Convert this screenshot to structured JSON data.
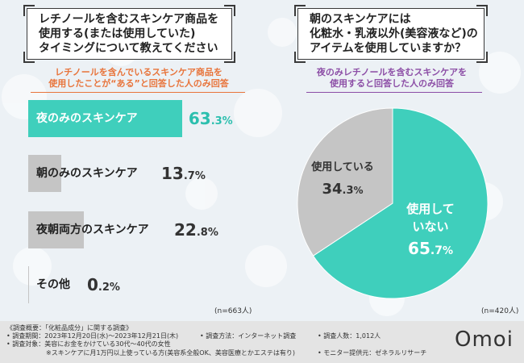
{
  "left_panel": {
    "question_lines": [
      "レチノールを含むスキンケア商品を",
      "使用する(または使用していた)",
      "タイミングについて教えてください"
    ],
    "subtitle_lines": [
      "レチノールを含んでいるスキンケア商品を",
      "使用したことが“ある”と回答した人のみ回答"
    ],
    "n_label": "(n=663人)"
  },
  "right_panel": {
    "question_lines": [
      "朝のスキンケアには",
      "化粧水・乳液以外(美容液など)の",
      "アイテムを使用していますか？"
    ],
    "subtitle_lines": [
      "夜のみレチノールを含むスキンケアを",
      "使用すると回答した人のみ回答"
    ],
    "n_label": "(n=420人)"
  },
  "chart_data": [
    {
      "type": "bar",
      "orientation": "horizontal",
      "title": "レチノールを含むスキンケア商品を使用する(または使用していた)タイミングについて教えてください",
      "subtitle": "レチノールを含んでいるスキンケア商品を使用したことが“ある”と回答した人のみ回答",
      "unit": "%",
      "xlim": [
        0,
        65
      ],
      "categories": [
        "夜のみのスキンケア",
        "朝のみのスキンケア",
        "夜朝両方のスキンケア",
        "その他"
      ],
      "values": [
        63.3,
        13.7,
        22.8,
        0.2
      ],
      "value_labels": [
        {
          "int": "63",
          "dec": ".3",
          "unit": "%"
        },
        {
          "int": "13",
          "dec": ".7",
          "unit": "%"
        },
        {
          "int": "22",
          "dec": ".8",
          "unit": "%"
        },
        {
          "int": "0",
          "dec": ".2",
          "unit": "%"
        }
      ],
      "colors": [
        "#3fcfbc",
        "#c5c5c5",
        "#c5c5c5",
        "#c5c5c5"
      ],
      "highlight_label_color": "#ffffff",
      "highlight_value_color": "#2cbfae",
      "n": "(n=663人)"
    },
    {
      "type": "pie",
      "title": "朝のスキンケアには化粧水・乳液以外(美容液など)のアイテムを使用していますか？",
      "subtitle": "夜のみレチノールを含むスキンケアを使用すると回答した人のみ回答",
      "unit": "%",
      "slices": [
        {
          "label": "使用していない",
          "display_lines": [
            "使用して",
            "いない"
          ],
          "value": 65.7,
          "int": "65",
          "dec": ".7",
          "unit": "%",
          "color": "#3fcfbc"
        },
        {
          "label": "使用している",
          "display_lines": [
            "使用している"
          ],
          "value": 34.3,
          "int": "34",
          "dec": ".3",
          "unit": "%",
          "color": "#c5c5c5"
        }
      ],
      "n": "(n=420人)"
    }
  ],
  "footer": {
    "lines": [
      "《調査概要：「化粧品成分」に関する調査》",
      "• 調査期間：2023年12月20日(水)～2023年12月21日(木)",
      "• 調査方法：インターネット調査",
      "• 調査人数：1,012人",
      "• 調査対象：美容にお金をかけている30代～40代の女性",
      "※スキンケアに月1万円以上使っている方(美容系全般OK、美容医療とかエステは有り)",
      "• モニター提供元：ゼネラルリサーチ"
    ],
    "logo": "Omoi"
  },
  "colors": {
    "teal": "#3fcfbc",
    "gray": "#c5c5c5",
    "orange": "#e8743b",
    "purple": "#8c4ea6"
  }
}
